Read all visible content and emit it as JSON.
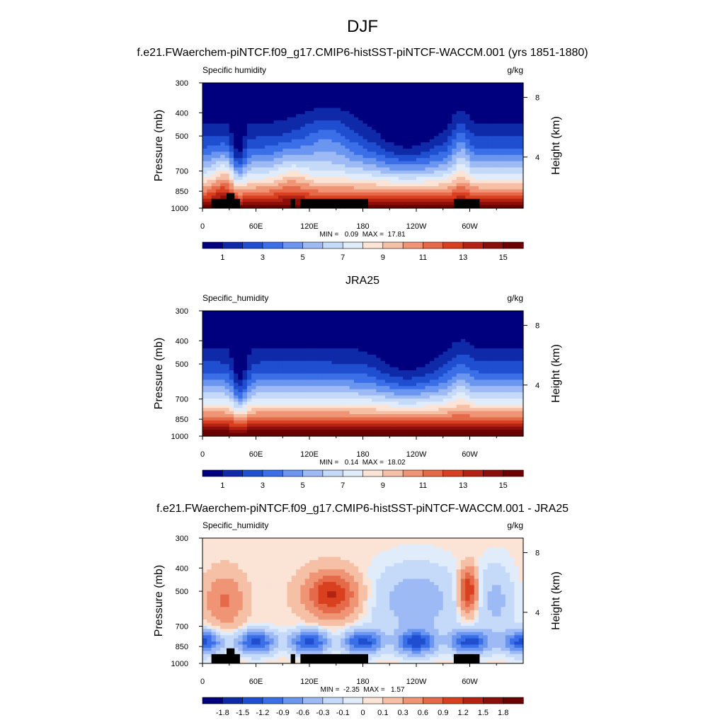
{
  "figure": {
    "title": "DJF"
  },
  "chart_data": [
    {
      "type": "heatmap",
      "panel_title": "f.e21.FWaerchem-piNTCF.f09_g17.CMIP6-histSST-piNTCF-WACCM.001 (yrs 1851-1880)",
      "left_label": "Specific humidity",
      "units": "g/kg",
      "ylabel": "Pressure (mb)",
      "y2label": "Height (km)",
      "yticks": [
        "300",
        "400",
        "500",
        "700",
        "850",
        "1000"
      ],
      "y2ticks": [
        "8",
        "4"
      ],
      "xticks": [
        "0",
        "60E",
        "120E",
        "180",
        "120W",
        "60W"
      ],
      "x_range": [
        0,
        360
      ],
      "pressure_range": [
        300,
        1000
      ],
      "stats": "MIN =   0.09  MAX =  17.81",
      "min": 0.09,
      "max": 17.81,
      "colorbar_labels": [
        "1",
        "3",
        "5",
        "7",
        "9",
        "11",
        "13",
        "15"
      ],
      "topography_mask": true
    },
    {
      "type": "heatmap",
      "panel_title": "JRA25",
      "left_label": "Specific_humidity",
      "units": "g/kg",
      "ylabel": "Pressure (mb)",
      "y2label": "Height (km)",
      "yticks": [
        "300",
        "400",
        "500",
        "700",
        "850",
        "1000"
      ],
      "y2ticks": [
        "8",
        "4"
      ],
      "xticks": [
        "0",
        "60E",
        "120E",
        "180",
        "120W",
        "60W"
      ],
      "x_range": [
        0,
        360
      ],
      "pressure_range": [
        300,
        1000
      ],
      "stats": "MIN =   0.14  MAX =  18.02",
      "min": 0.14,
      "max": 18.02,
      "colorbar_labels": [
        "1",
        "3",
        "5",
        "7",
        "9",
        "11",
        "13",
        "15"
      ],
      "topography_mask": false
    },
    {
      "type": "heatmap",
      "panel_title": "f.e21.FWaerchem-piNTCF.f09_g17.CMIP6-histSST-piNTCF-WACCM.001 - JRA25",
      "left_label": "Specific_humidity",
      "units": "g/kg",
      "ylabel": "Pressure (mb)",
      "y2label": "Height (km)",
      "yticks": [
        "300",
        "400",
        "500",
        "700",
        "850",
        "1000"
      ],
      "y2ticks": [
        "8",
        "4"
      ],
      "xticks": [
        "0",
        "60E",
        "120E",
        "180",
        "120W",
        "60W"
      ],
      "x_range": [
        0,
        360
      ],
      "pressure_range": [
        300,
        1000
      ],
      "stats": "MIN =  -2.35  MAX =   1.57",
      "min": -2.35,
      "max": 1.57,
      "colorbar_labels": [
        "-1.8",
        "-1.5",
        "-1.2",
        "-0.9",
        "-0.6",
        "-0.3",
        "-0.1",
        "0",
        "0.1",
        "0.3",
        "0.6",
        "0.9",
        "1.2",
        "1.5",
        "1.8"
      ],
      "topography_mask": true
    }
  ],
  "colormap": [
    "#00007f",
    "#0e2aa8",
    "#1f4fd0",
    "#3a6fe8",
    "#6b96f0",
    "#9dbaf5",
    "#c5d9f8",
    "#e1ecfa",
    "#fbe3d6",
    "#f6c0a6",
    "#ef9474",
    "#e56a4a",
    "#d8401f",
    "#b32212",
    "#8a0f0a",
    "#6a0000"
  ]
}
